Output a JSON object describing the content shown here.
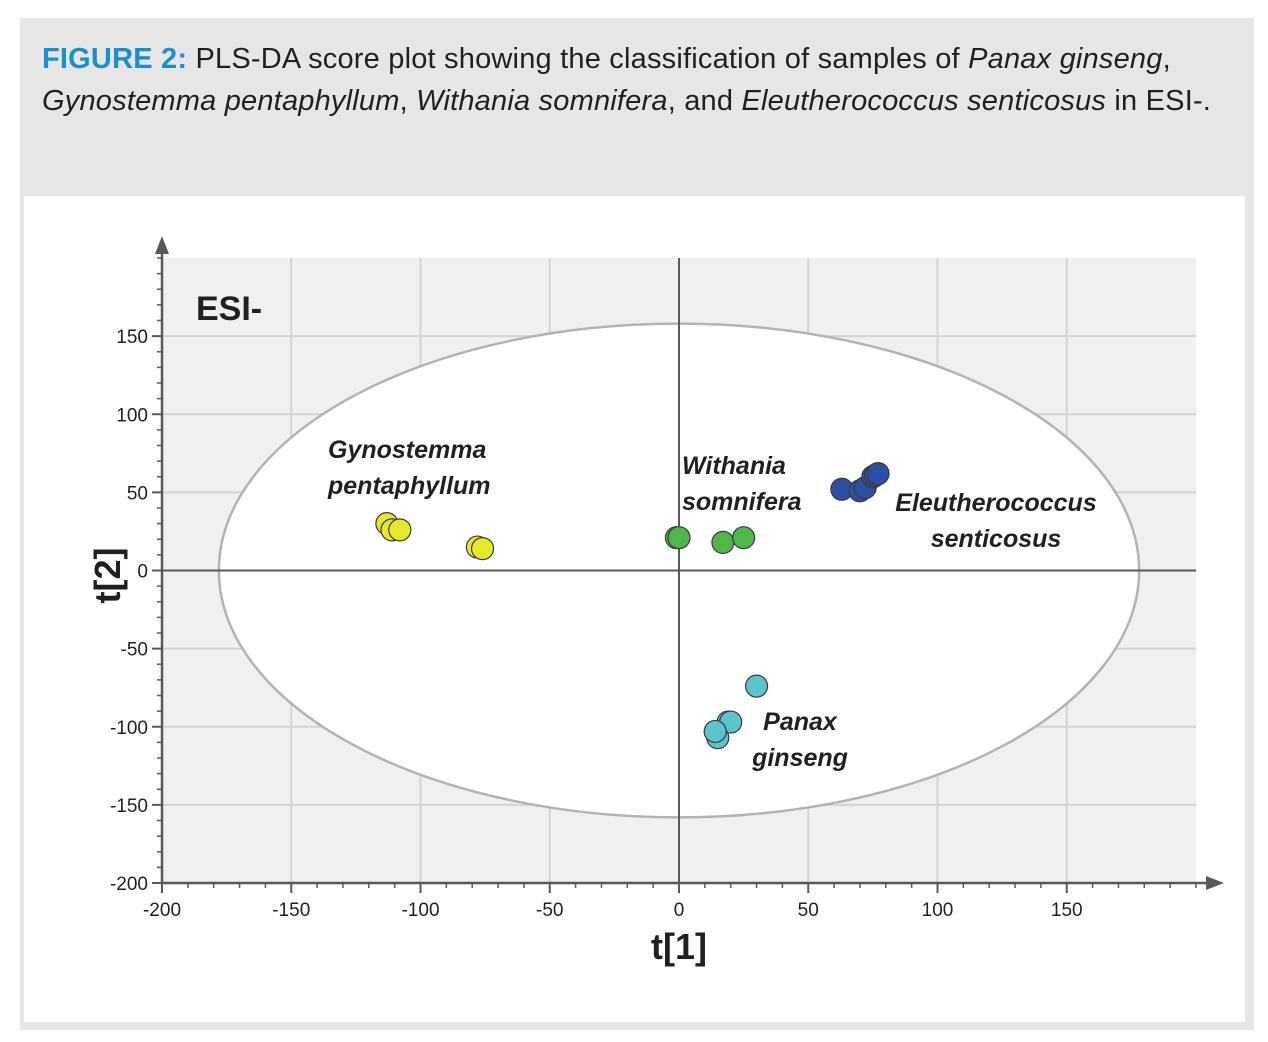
{
  "caption": {
    "label": "FIGURE 2:",
    "parts": [
      {
        "text": " PLS-DA score plot showing the classification of samples of ",
        "italic": false
      },
      {
        "text": "Panax ginseng",
        "italic": true
      },
      {
        "text": ", ",
        "italic": false
      },
      {
        "text": "Gynostemma pentaphyllum",
        "italic": true
      },
      {
        "text": ", ",
        "italic": false
      },
      {
        "text": "Withania somnifera",
        "italic": true
      },
      {
        "text": ", and ",
        "italic": false
      },
      {
        "text": "Eleutherococcus senticosus",
        "italic": true
      },
      {
        "text": " in ESI-.",
        "italic": false
      }
    ]
  },
  "colors": {
    "caption_label": "#1a8fcf",
    "frame_bg": "#e6e6e6",
    "plot_bg": "#f0f0f0",
    "grid": "#d4d4d4",
    "axis": "#595959",
    "ellipse": "#b3b3b3"
  },
  "chart_data": {
    "type": "scatter",
    "mode_label": "ESI-",
    "xlabel": "t[1]",
    "ylabel": "t[2]",
    "xlim": [
      -200,
      200
    ],
    "ylim": [
      -200,
      200
    ],
    "xticks": [
      -200,
      -150,
      -100,
      -50,
      0,
      50,
      100,
      150
    ],
    "yticks": [
      -200,
      -150,
      -100,
      -50,
      0,
      50,
      100,
      150
    ],
    "grid": true,
    "hotelling_ellipse": {
      "cx": 0,
      "cy": 0,
      "rx": 178,
      "ry": 158
    },
    "series": [
      {
        "name": "Gynostemma pentaphyllum",
        "label_lines": [
          "Gynostemma",
          "pentaphyllum"
        ],
        "color": "#e5e62e",
        "points": [
          [
            -113,
            30
          ],
          [
            -111,
            26
          ],
          [
            -108,
            26
          ],
          [
            -78,
            15
          ],
          [
            -76,
            14
          ]
        ]
      },
      {
        "name": "Withania somnifera",
        "label_lines": [
          "Withania",
          "somnifera"
        ],
        "color": "#4db848",
        "points": [
          [
            -1,
            21
          ],
          [
            0,
            21
          ],
          [
            17,
            18
          ],
          [
            25,
            21
          ]
        ]
      },
      {
        "name": "Eleutherococcus senticosus",
        "label_lines": [
          "Eleutherococcus",
          "senticosus"
        ],
        "color": "#2e4ea3",
        "points": [
          [
            63,
            52
          ],
          [
            70,
            51
          ],
          [
            72,
            53
          ],
          [
            75,
            60
          ],
          [
            76,
            61
          ],
          [
            77,
            62
          ]
        ]
      },
      {
        "name": "Panax ginseng",
        "label_lines": [
          "Panax",
          "ginseng"
        ],
        "color": "#5bc4cc",
        "points": [
          [
            30,
            -74
          ],
          [
            19,
            -97
          ],
          [
            20,
            -97
          ],
          [
            15,
            -107
          ],
          [
            14,
            -103
          ]
        ]
      }
    ]
  }
}
